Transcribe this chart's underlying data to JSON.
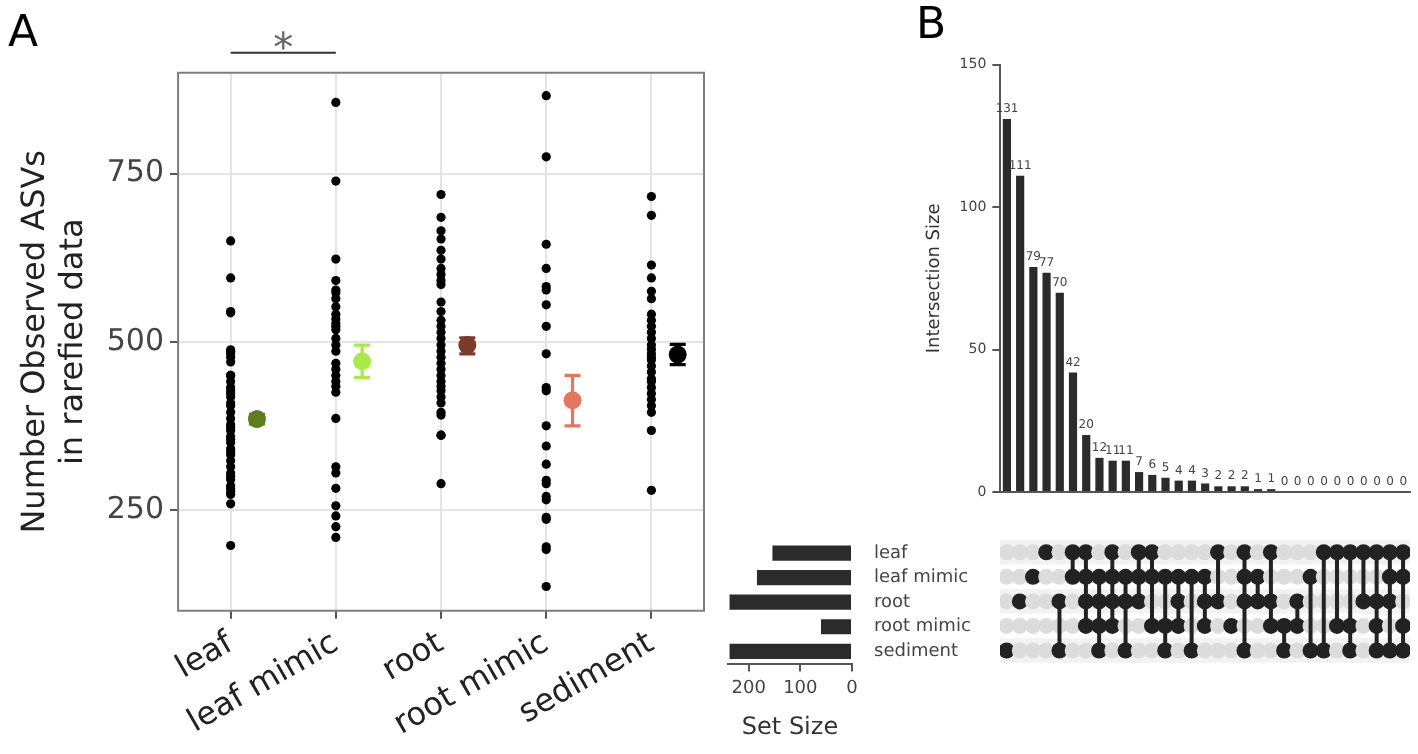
{
  "chart_data": [
    {
      "type": "scatter",
      "title": "A",
      "ylabel": "Number Observed ASVs\nin rarefied data",
      "categories": [
        "leaf",
        "leaf mimic",
        "root",
        "root mimic",
        "sediment"
      ],
      "ylim": [
        100,
        900
      ],
      "yticks": [
        250,
        500,
        750
      ],
      "grid": true,
      "marker": "circle",
      "annotations": [
        "*"
      ],
      "series": [
        {
          "type": "scatter",
          "color": "#000000",
          "x": [
            "leaf",
            "leaf",
            "leaf",
            "leaf",
            "leaf",
            "leaf",
            "leaf",
            "leaf",
            "leaf",
            "leaf",
            "leaf",
            "leaf",
            "leaf",
            "leaf",
            "leaf",
            "leaf",
            "leaf",
            "leaf",
            "leaf",
            "leaf",
            "leaf",
            "leaf",
            "leaf",
            "leaf",
            "leaf",
            "leaf",
            "leaf",
            "leaf",
            "leaf",
            "leaf",
            "leaf",
            "leaf",
            "leaf",
            "leaf",
            "leaf",
            "leaf",
            "leaf",
            "leaf",
            "leaf",
            "leaf",
            "leaf mimic",
            "leaf mimic",
            "leaf mimic",
            "leaf mimic",
            "leaf mimic",
            "leaf mimic",
            "leaf mimic",
            "leaf mimic",
            "leaf mimic",
            "leaf mimic",
            "leaf mimic",
            "leaf mimic",
            "leaf mimic",
            "leaf mimic",
            "leaf mimic",
            "leaf mimic",
            "leaf mimic",
            "leaf mimic",
            "leaf mimic",
            "leaf mimic",
            "leaf mimic",
            "leaf mimic",
            "leaf mimic",
            "leaf mimic",
            "leaf mimic",
            "leaf mimic",
            "leaf mimic",
            "leaf mimic",
            "leaf mimic",
            "leaf mimic",
            "root",
            "root",
            "root",
            "root",
            "root",
            "root",
            "root",
            "root",
            "root",
            "root",
            "root",
            "root",
            "root",
            "root",
            "root",
            "root",
            "root",
            "root",
            "root",
            "root",
            "root",
            "root",
            "root",
            "root",
            "root",
            "root",
            "root",
            "root",
            "root",
            "root",
            "root",
            "root",
            "root mimic",
            "root mimic",
            "root mimic",
            "root mimic",
            "root mimic",
            "root mimic",
            "root mimic",
            "root mimic",
            "root mimic",
            "root mimic",
            "root mimic",
            "root mimic",
            "root mimic",
            "root mimic",
            "root mimic",
            "root mimic",
            "root mimic",
            "root mimic",
            "root mimic",
            "root mimic",
            "root mimic",
            "root mimic",
            "root mimic",
            "sediment",
            "sediment",
            "sediment",
            "sediment",
            "sediment",
            "sediment",
            "sediment",
            "sediment",
            "sediment",
            "sediment",
            "sediment",
            "sediment",
            "sediment",
            "sediment",
            "sediment",
            "sediment",
            "sediment",
            "sediment",
            "sediment",
            "sediment",
            "sediment",
            "sediment",
            "sediment",
            "sediment",
            "sediment",
            "sediment",
            "sediment"
          ],
          "values": [
            650,
            595,
            545,
            543,
            488,
            486,
            482,
            477,
            470,
            450,
            450,
            441,
            432,
            427,
            423,
            418,
            409,
            405,
            395,
            386,
            377,
            373,
            368,
            359,
            355,
            350,
            341,
            336,
            332,
            323,
            314,
            305,
            300,
            295,
            286,
            282,
            277,
            273,
            259,
            197,
            856,
            739,
            623,
            591,
            577,
            573,
            564,
            552,
            541,
            534,
            527,
            523,
            518,
            505,
            495,
            486,
            468,
            459,
            450,
            441,
            434,
            425,
            386,
            314,
            305,
            282,
            256,
            241,
            225,
            209,
            719,
            685,
            665,
            653,
            636,
            623,
            609,
            600,
            591,
            585,
            559,
            545,
            532,
            523,
            514,
            505,
            495,
            486,
            477,
            468,
            459,
            450,
            441,
            434,
            427,
            418,
            409,
            395,
            391,
            361,
            361,
            289,
            866,
            775,
            645,
            609,
            582,
            577,
            555,
            523,
            482,
            432,
            427,
            375,
            345,
            318,
            294,
            289,
            270,
            265,
            239,
            236,
            195,
            191,
            136,
            716,
            688,
            614,
            595,
            575,
            564,
            541,
            532,
            523,
            514,
            505,
            495,
            489,
            482,
            477,
            473,
            464,
            455,
            445,
            441,
            432,
            423,
            414,
            405,
            395,
            368,
            279
          ]
        },
        {
          "type": "scatter",
          "colors": [
            "#5b7f1f",
            "#a8ea4a",
            "#7d3a26",
            "#e3765c",
            "#000000"
          ],
          "values": [
            385,
            471,
            495,
            413,
            481
          ],
          "errors": [
            [
              378,
              392
            ],
            [
              447,
              495
            ],
            [
              482,
              506
            ],
            [
              375,
              450
            ],
            [
              466,
              496
            ]
          ]
        }
      ]
    },
    {
      "type": "bar",
      "title": "B",
      "ylabel": "Intersection Size",
      "categories": [
        null,
        null,
        null,
        null,
        null,
        null,
        null,
        null,
        null,
        null,
        null,
        null,
        null,
        null,
        null,
        null,
        null,
        null,
        null,
        null,
        null,
        null,
        null,
        null,
        null,
        null,
        null,
        null,
        null,
        null,
        null
      ],
      "values": [
        131,
        111,
        79,
        77,
        70,
        42,
        20,
        12,
        11,
        11,
        7,
        6,
        5,
        4,
        4,
        3,
        2,
        2,
        2,
        1,
        1,
        0,
        0,
        0,
        0,
        0,
        0,
        0,
        0,
        0,
        0
      ],
      "color": "#2b2b2b",
      "ylim": [
        0,
        150
      ],
      "yticks": [
        0,
        50,
        100,
        150
      ],
      "data_labels": true
    },
    {
      "type": "bar",
      "orientation": "horizontal",
      "xlabel": "Set Size",
      "categories": [
        "leaf",
        "leaf mimic",
        "root",
        "root mimic",
        "sediment"
      ],
      "values": [
        154,
        184,
        237,
        60,
        237
      ],
      "color": "#2b2b2b",
      "xlim": [
        240,
        0
      ],
      "xticks": [
        200,
        100,
        0
      ]
    }
  ]
}
